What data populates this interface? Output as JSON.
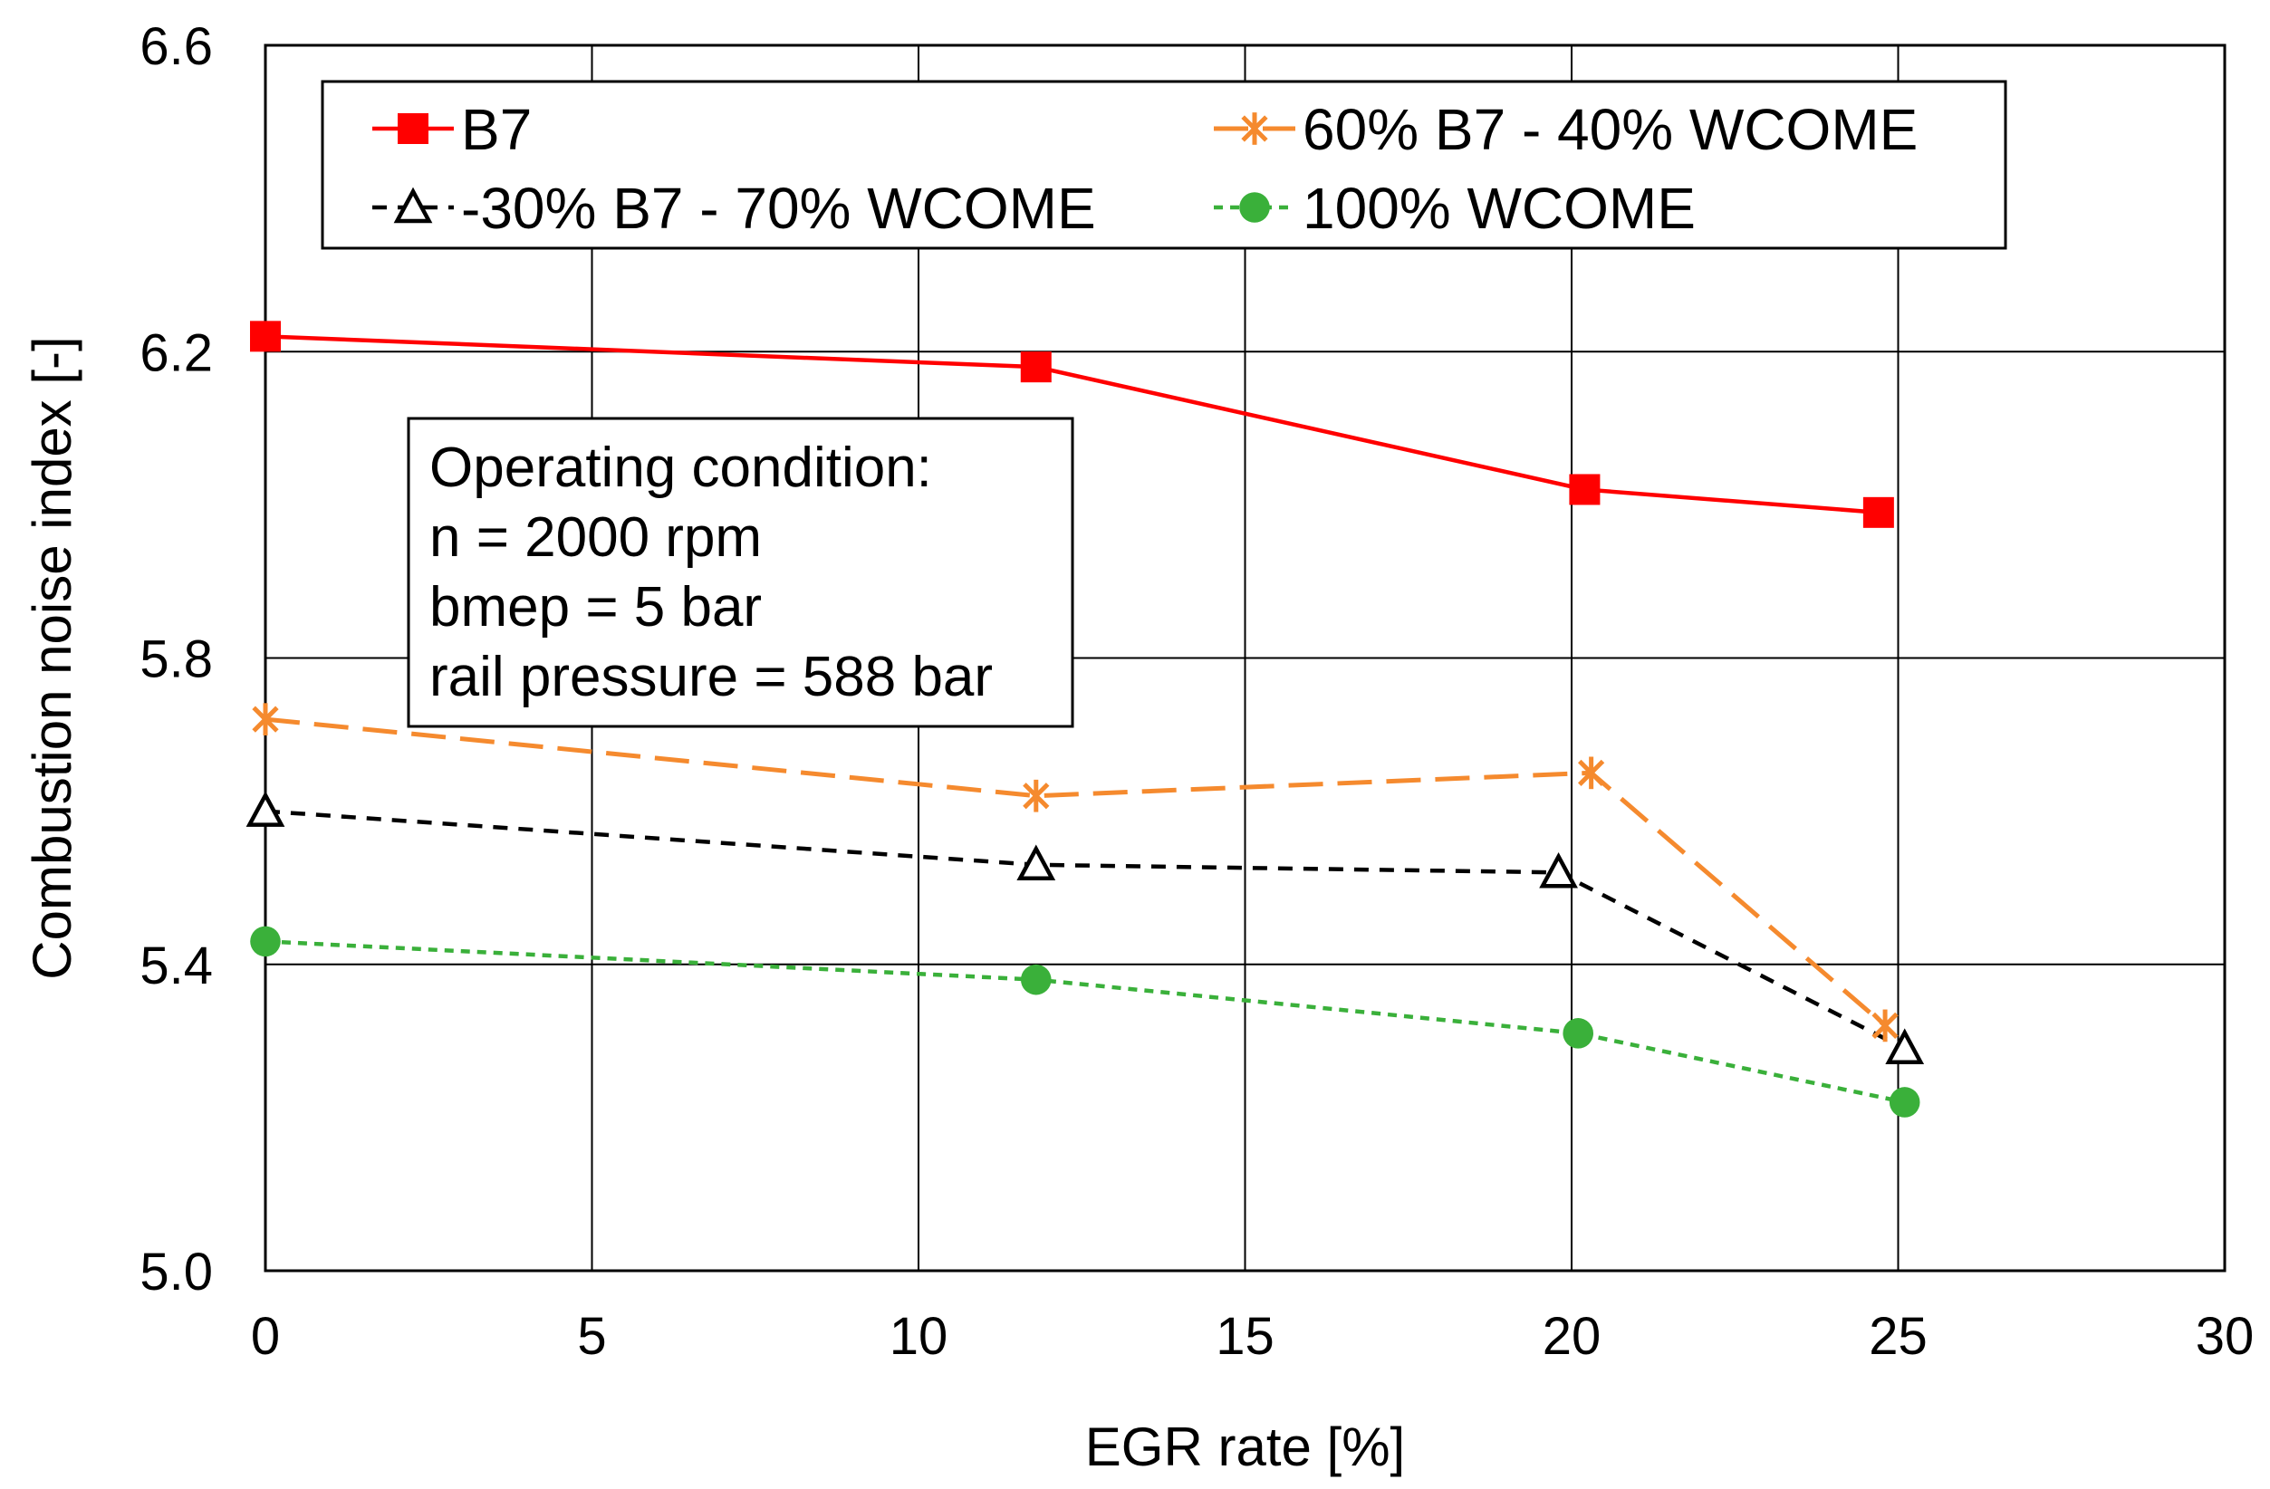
{
  "chart_data": {
    "type": "line",
    "xlabel": "EGR rate [%]",
    "ylabel": "Combustion noise index [-]",
    "xlim": [
      0,
      30
    ],
    "ylim": [
      5.0,
      6.6
    ],
    "xticks": [
      0,
      5,
      10,
      15,
      20,
      25,
      30
    ],
    "yticks": [
      5.0,
      5.4,
      5.8,
      6.2,
      6.6
    ],
    "xtick_labels": [
      "0",
      "5",
      "10",
      "15",
      "20",
      "25",
      "30"
    ],
    "ytick_labels": [
      "5.0",
      "5.4",
      "5.8",
      "6.2",
      "6.6"
    ],
    "grid": true,
    "legend_position": "top",
    "series": [
      {
        "name": "B7",
        "color": "#ff0000",
        "marker": "square",
        "line_style": "solid",
        "x": [
          0,
          11.8,
          20.2,
          24.7
        ],
        "y": [
          6.22,
          6.18,
          6.02,
          5.99
        ]
      },
      {
        "name": "60% B7 - 40% WCOME",
        "color": "#f58a2e",
        "marker": "asterisk",
        "line_style": "long-dash",
        "x": [
          0,
          11.8,
          20.3,
          24.8
        ],
        "y": [
          5.72,
          5.62,
          5.65,
          5.32
        ]
      },
      {
        "name": "30% B7 - 70% WCOME",
        "color": "#000000",
        "marker": "triangle-open",
        "line_style": "dash",
        "x": [
          0,
          11.8,
          19.8,
          25.1
        ],
        "y": [
          5.6,
          5.53,
          5.52,
          5.29
        ]
      },
      {
        "name": "100% WCOME",
        "color": "#3ab03a",
        "marker": "circle",
        "line_style": "short-dash",
        "x": [
          0,
          11.8,
          20.1,
          25.1
        ],
        "y": [
          5.43,
          5.38,
          5.31,
          5.22
        ]
      }
    ],
    "annotation": {
      "lines": [
        "Operating condition:",
        "n = 2000 rpm",
        "bmep = 5 bar",
        "rail pressure = 588 bar"
      ]
    }
  }
}
